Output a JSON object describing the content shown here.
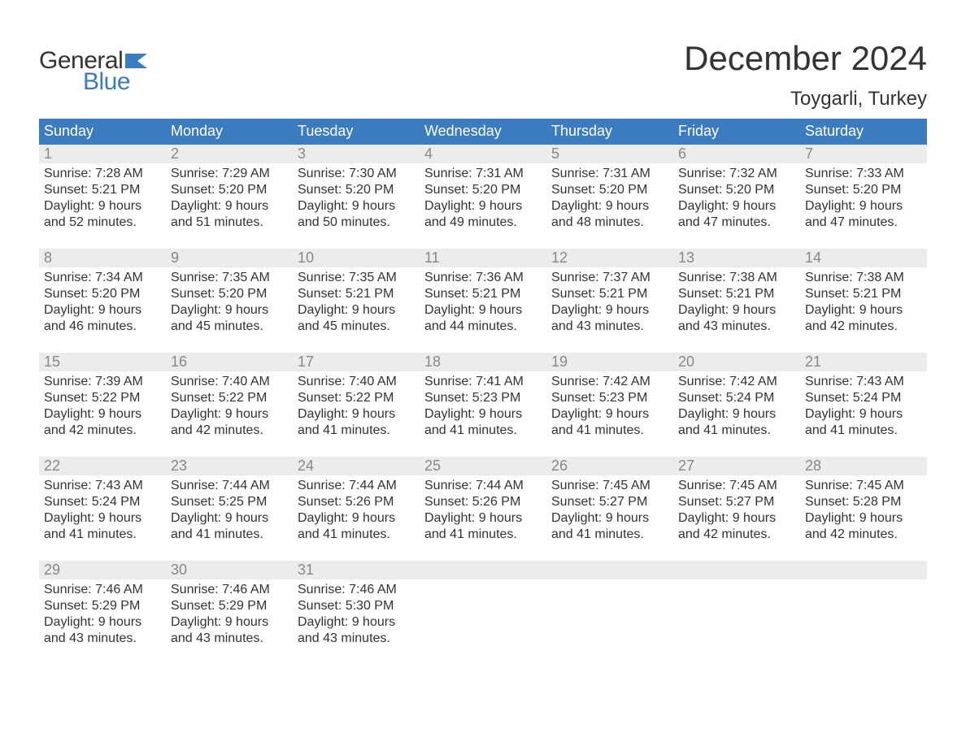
{
  "brand": {
    "word1": "General",
    "word2": "Blue"
  },
  "title": "December 2024",
  "location": "Toygarli, Turkey",
  "colors": {
    "header_bg": "#3b7bbf",
    "header_text": "#ffffff",
    "daynum_bg": "#ececec",
    "daynum_text": "#888888",
    "body_text": "#333333",
    "rule": "#3b7bbf",
    "logo_blue": "#3b7bbf"
  },
  "day_names": [
    "Sunday",
    "Monday",
    "Tuesday",
    "Wednesday",
    "Thursday",
    "Friday",
    "Saturday"
  ],
  "weeks": [
    {
      "nums": [
        "1",
        "2",
        "3",
        "4",
        "5",
        "6",
        "7"
      ],
      "cells": [
        {
          "sunrise": "Sunrise: 7:28 AM",
          "sunset": "Sunset: 5:21 PM",
          "d1": "Daylight: 9 hours",
          "d2": "and 52 minutes."
        },
        {
          "sunrise": "Sunrise: 7:29 AM",
          "sunset": "Sunset: 5:20 PM",
          "d1": "Daylight: 9 hours",
          "d2": "and 51 minutes."
        },
        {
          "sunrise": "Sunrise: 7:30 AM",
          "sunset": "Sunset: 5:20 PM",
          "d1": "Daylight: 9 hours",
          "d2": "and 50 minutes."
        },
        {
          "sunrise": "Sunrise: 7:31 AM",
          "sunset": "Sunset: 5:20 PM",
          "d1": "Daylight: 9 hours",
          "d2": "and 49 minutes."
        },
        {
          "sunrise": "Sunrise: 7:31 AM",
          "sunset": "Sunset: 5:20 PM",
          "d1": "Daylight: 9 hours",
          "d2": "and 48 minutes."
        },
        {
          "sunrise": "Sunrise: 7:32 AM",
          "sunset": "Sunset: 5:20 PM",
          "d1": "Daylight: 9 hours",
          "d2": "and 47 minutes."
        },
        {
          "sunrise": "Sunrise: 7:33 AM",
          "sunset": "Sunset: 5:20 PM",
          "d1": "Daylight: 9 hours",
          "d2": "and 47 minutes."
        }
      ]
    },
    {
      "nums": [
        "8",
        "9",
        "10",
        "11",
        "12",
        "13",
        "14"
      ],
      "cells": [
        {
          "sunrise": "Sunrise: 7:34 AM",
          "sunset": "Sunset: 5:20 PM",
          "d1": "Daylight: 9 hours",
          "d2": "and 46 minutes."
        },
        {
          "sunrise": "Sunrise: 7:35 AM",
          "sunset": "Sunset: 5:20 PM",
          "d1": "Daylight: 9 hours",
          "d2": "and 45 minutes."
        },
        {
          "sunrise": "Sunrise: 7:35 AM",
          "sunset": "Sunset: 5:21 PM",
          "d1": "Daylight: 9 hours",
          "d2": "and 45 minutes."
        },
        {
          "sunrise": "Sunrise: 7:36 AM",
          "sunset": "Sunset: 5:21 PM",
          "d1": "Daylight: 9 hours",
          "d2": "and 44 minutes."
        },
        {
          "sunrise": "Sunrise: 7:37 AM",
          "sunset": "Sunset: 5:21 PM",
          "d1": "Daylight: 9 hours",
          "d2": "and 43 minutes."
        },
        {
          "sunrise": "Sunrise: 7:38 AM",
          "sunset": "Sunset: 5:21 PM",
          "d1": "Daylight: 9 hours",
          "d2": "and 43 minutes."
        },
        {
          "sunrise": "Sunrise: 7:38 AM",
          "sunset": "Sunset: 5:21 PM",
          "d1": "Daylight: 9 hours",
          "d2": "and 42 minutes."
        }
      ]
    },
    {
      "nums": [
        "15",
        "16",
        "17",
        "18",
        "19",
        "20",
        "21"
      ],
      "cells": [
        {
          "sunrise": "Sunrise: 7:39 AM",
          "sunset": "Sunset: 5:22 PM",
          "d1": "Daylight: 9 hours",
          "d2": "and 42 minutes."
        },
        {
          "sunrise": "Sunrise: 7:40 AM",
          "sunset": "Sunset: 5:22 PM",
          "d1": "Daylight: 9 hours",
          "d2": "and 42 minutes."
        },
        {
          "sunrise": "Sunrise: 7:40 AM",
          "sunset": "Sunset: 5:22 PM",
          "d1": "Daylight: 9 hours",
          "d2": "and 41 minutes."
        },
        {
          "sunrise": "Sunrise: 7:41 AM",
          "sunset": "Sunset: 5:23 PM",
          "d1": "Daylight: 9 hours",
          "d2": "and 41 minutes."
        },
        {
          "sunrise": "Sunrise: 7:42 AM",
          "sunset": "Sunset: 5:23 PM",
          "d1": "Daylight: 9 hours",
          "d2": "and 41 minutes."
        },
        {
          "sunrise": "Sunrise: 7:42 AM",
          "sunset": "Sunset: 5:24 PM",
          "d1": "Daylight: 9 hours",
          "d2": "and 41 minutes."
        },
        {
          "sunrise": "Sunrise: 7:43 AM",
          "sunset": "Sunset: 5:24 PM",
          "d1": "Daylight: 9 hours",
          "d2": "and 41 minutes."
        }
      ]
    },
    {
      "nums": [
        "22",
        "23",
        "24",
        "25",
        "26",
        "27",
        "28"
      ],
      "cells": [
        {
          "sunrise": "Sunrise: 7:43 AM",
          "sunset": "Sunset: 5:24 PM",
          "d1": "Daylight: 9 hours",
          "d2": "and 41 minutes."
        },
        {
          "sunrise": "Sunrise: 7:44 AM",
          "sunset": "Sunset: 5:25 PM",
          "d1": "Daylight: 9 hours",
          "d2": "and 41 minutes."
        },
        {
          "sunrise": "Sunrise: 7:44 AM",
          "sunset": "Sunset: 5:26 PM",
          "d1": "Daylight: 9 hours",
          "d2": "and 41 minutes."
        },
        {
          "sunrise": "Sunrise: 7:44 AM",
          "sunset": "Sunset: 5:26 PM",
          "d1": "Daylight: 9 hours",
          "d2": "and 41 minutes."
        },
        {
          "sunrise": "Sunrise: 7:45 AM",
          "sunset": "Sunset: 5:27 PM",
          "d1": "Daylight: 9 hours",
          "d2": "and 41 minutes."
        },
        {
          "sunrise": "Sunrise: 7:45 AM",
          "sunset": "Sunset: 5:27 PM",
          "d1": "Daylight: 9 hours",
          "d2": "and 42 minutes."
        },
        {
          "sunrise": "Sunrise: 7:45 AM",
          "sunset": "Sunset: 5:28 PM",
          "d1": "Daylight: 9 hours",
          "d2": "and 42 minutes."
        }
      ]
    },
    {
      "nums": [
        "29",
        "30",
        "31",
        "",
        "",
        "",
        ""
      ],
      "cells": [
        {
          "sunrise": "Sunrise: 7:46 AM",
          "sunset": "Sunset: 5:29 PM",
          "d1": "Daylight: 9 hours",
          "d2": "and 43 minutes."
        },
        {
          "sunrise": "Sunrise: 7:46 AM",
          "sunset": "Sunset: 5:29 PM",
          "d1": "Daylight: 9 hours",
          "d2": "and 43 minutes."
        },
        {
          "sunrise": "Sunrise: 7:46 AM",
          "sunset": "Sunset: 5:30 PM",
          "d1": "Daylight: 9 hours",
          "d2": "and 43 minutes."
        },
        null,
        null,
        null,
        null
      ]
    }
  ]
}
